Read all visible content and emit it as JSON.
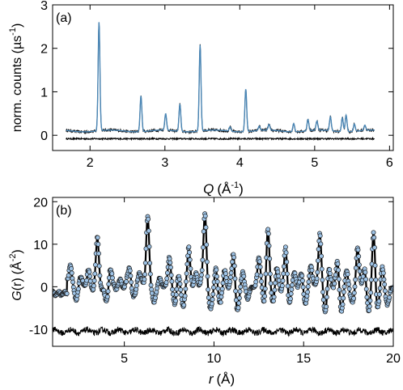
{
  "chart_data": [
    {
      "panel_label": "(a)",
      "type": "line",
      "xlabel_symbol": "Q",
      "xlabel_unit": "(Å",
      "xlabel_unit_exp": "-1",
      "xlabel_unit_close": ")",
      "ylabel": "norm. counts (µs",
      "ylabel_exp": "-1",
      "ylabel_close": ")",
      "xlim": [
        1.5,
        6.05
      ],
      "ylim": [
        -0.35,
        3.0
      ],
      "xticks": [
        2,
        3,
        4,
        5,
        6
      ],
      "yticks": [
        0,
        1,
        2,
        3
      ],
      "baseline": 0.1,
      "peaks": [
        {
          "q": 2.12,
          "height": 2.5
        },
        {
          "q": 2.68,
          "height": 0.82
        },
        {
          "q": 3.01,
          "height": 0.38
        },
        {
          "q": 3.2,
          "height": 0.63
        },
        {
          "q": 3.47,
          "height": 1.98
        },
        {
          "q": 3.87,
          "height": 0.1
        },
        {
          "q": 4.08,
          "height": 0.98
        },
        {
          "q": 4.26,
          "height": 0.1
        },
        {
          "q": 4.39,
          "height": 0.13
        },
        {
          "q": 4.72,
          "height": 0.19
        },
        {
          "q": 4.91,
          "height": 0.26
        },
        {
          "q": 5.03,
          "height": 0.21
        },
        {
          "q": 5.21,
          "height": 0.32
        },
        {
          "q": 5.37,
          "height": 0.32
        },
        {
          "q": 5.42,
          "height": 0.38
        },
        {
          "q": 5.53,
          "height": 0.17
        },
        {
          "q": 5.67,
          "height": 0.12
        }
      ],
      "x_range": [
        1.68,
        5.8
      ],
      "difference_offset": -0.08,
      "series_colors": {
        "observed": "#000000",
        "calculated": "#4a86b5",
        "difference": "#000000"
      }
    },
    {
      "panel_label": "(b)",
      "type": "scatter",
      "xlabel_symbol": "r",
      "xlabel_unit": "(Å)",
      "ylabel_symbol": "G",
      "ylabel_r": "(r)",
      "ylabel_unit": "(Å",
      "ylabel_exp": "-2",
      "ylabel_close": ")",
      "xlim": [
        1.0,
        20.0
      ],
      "ylim": [
        -14.0,
        21.0
      ],
      "xticks": [
        5,
        10,
        15,
        20
      ],
      "yticks": [
        -10,
        0,
        10,
        20
      ],
      "peaks": [
        {
          "r": 2.0,
          "g": 5.5
        },
        {
          "r": 2.5,
          "g": 2.0
        },
        {
          "r": 3.0,
          "g": 4.0
        },
        {
          "r": 3.5,
          "g": 10.5
        },
        {
          "r": 4.2,
          "g": 4.0
        },
        {
          "r": 4.8,
          "g": 2.0
        },
        {
          "r": 5.3,
          "g": 5.0
        },
        {
          "r": 5.8,
          "g": 3.5
        },
        {
          "r": 6.3,
          "g": 17.0
        },
        {
          "r": 7.0,
          "g": 2.5
        },
        {
          "r": 7.5,
          "g": 7.0
        },
        {
          "r": 8.0,
          "g": 3.5
        },
        {
          "r": 8.6,
          "g": 9.0
        },
        {
          "r": 9.0,
          "g": 3.5
        },
        {
          "r": 9.5,
          "g": 18.0
        },
        {
          "r": 10.1,
          "g": 4.0
        },
        {
          "r": 10.6,
          "g": 4.0
        },
        {
          "r": 11.1,
          "g": 8.0
        },
        {
          "r": 11.6,
          "g": 4.0
        },
        {
          "r": 12.0,
          "g": 3.0
        },
        {
          "r": 12.5,
          "g": 7.0
        },
        {
          "r": 13.0,
          "g": 15.0
        },
        {
          "r": 13.5,
          "g": 4.0
        },
        {
          "r": 14.0,
          "g": 10.0
        },
        {
          "r": 14.5,
          "g": 4.0
        },
        {
          "r": 14.9,
          "g": 4.0
        },
        {
          "r": 15.4,
          "g": 6.0
        },
        {
          "r": 15.9,
          "g": 12.0
        },
        {
          "r": 16.4,
          "g": 5.0
        },
        {
          "r": 16.9,
          "g": 6.0
        },
        {
          "r": 17.4,
          "g": 4.0
        },
        {
          "r": 18.0,
          "g": 10.0
        },
        {
          "r": 18.4,
          "g": 5.0
        },
        {
          "r": 18.9,
          "g": 14.0
        },
        {
          "r": 19.4,
          "g": 4.0
        }
      ],
      "troughs": [
        {
          "r": 2.3,
          "g": -2.5
        },
        {
          "r": 4.0,
          "g": -3.0
        },
        {
          "r": 5.5,
          "g": -2.5
        },
        {
          "r": 6.7,
          "g": -3.5
        },
        {
          "r": 7.8,
          "g": -4.0
        },
        {
          "r": 8.3,
          "g": -4.0
        },
        {
          "r": 9.8,
          "g": -5.0
        },
        {
          "r": 10.3,
          "g": -3.5
        },
        {
          "r": 11.3,
          "g": -5.5
        },
        {
          "r": 11.9,
          "g": -5.0
        },
        {
          "r": 12.8,
          "g": -4.0
        },
        {
          "r": 13.3,
          "g": -3.5
        },
        {
          "r": 14.2,
          "g": -4.5
        },
        {
          "r": 15.1,
          "g": -5.0
        },
        {
          "r": 16.2,
          "g": -5.5
        },
        {
          "r": 17.1,
          "g": -5.0
        },
        {
          "r": 17.7,
          "g": -4.5
        },
        {
          "r": 18.6,
          "g": -6.0
        },
        {
          "r": 19.1,
          "g": -5.5
        },
        {
          "r": 19.7,
          "g": -3.5
        }
      ],
      "difference_offset": -10.5,
      "series_colors": {
        "observed": "#9ec3e6",
        "calculated": "#000000",
        "difference": "#000000"
      }
    }
  ]
}
